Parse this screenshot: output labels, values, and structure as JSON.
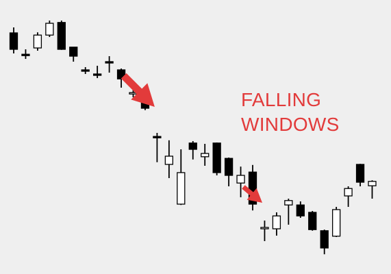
{
  "chart_data": {
    "type": "candlestick",
    "title": "",
    "xlabel": "",
    "ylabel": "",
    "grid": false,
    "legend": "none",
    "ylim": [
      0,
      100
    ],
    "candles": [
      {
        "open": 88.0,
        "high": 90.0,
        "low": 80.5,
        "close": 82.0
      },
      {
        "open": 80.2,
        "high": 82.0,
        "low": 78.5,
        "close": 79.8
      },
      {
        "open": 82.5,
        "high": 88.2,
        "low": 81.5,
        "close": 87.2
      },
      {
        "open": 87.2,
        "high": 92.5,
        "low": 86.5,
        "close": 91.5
      },
      {
        "open": 91.8,
        "high": 92.5,
        "low": 81.8,
        "close": 82.0
      },
      {
        "open": 82.8,
        "high": 82.8,
        "low": 77.5,
        "close": 79.5
      },
      {
        "open": 74.5,
        "high": 75.5,
        "low": 73.0,
        "close": 74.2
      },
      {
        "open": 73.0,
        "high": 76.0,
        "low": 71.5,
        "close": 72.8
      },
      {
        "open": 77.5,
        "high": 79.5,
        "low": 73.5,
        "close": 77.2
      },
      {
        "open": 74.5,
        "high": 75.0,
        "low": 68.0,
        "close": 71.2
      },
      {
        "open": 66.0,
        "high": 67.5,
        "low": 64.5,
        "close": 66.2
      },
      {
        "open": 67.0,
        "high": 68.5,
        "low": 59.8,
        "close": 60.5
      },
      {
        "open": 50.2,
        "high": 51.5,
        "low": 40.8,
        "close": 50.0
      },
      {
        "open": 40.0,
        "high": 48.8,
        "low": 35.0,
        "close": 43.0
      },
      {
        "open": 25.5,
        "high": 45.5,
        "low": 25.2,
        "close": 37.0
      },
      {
        "open": 47.8,
        "high": 48.5,
        "low": 41.8,
        "close": 45.5
      },
      {
        "open": 42.8,
        "high": 47.5,
        "low": 39.5,
        "close": 44.0
      },
      {
        "open": 47.8,
        "high": 48.0,
        "low": 36.0,
        "close": 37.0
      },
      {
        "open": 42.2,
        "high": 42.5,
        "low": 32.0,
        "close": 36.0
      },
      {
        "open": 33.2,
        "high": 39.2,
        "low": 28.0,
        "close": 36.0
      },
      {
        "open": 37.2,
        "high": 39.8,
        "low": 23.2,
        "close": 25.5
      },
      {
        "open": 16.8,
        "high": 19.5,
        "low": 12.0,
        "close": 17.0
      },
      {
        "open": 16.5,
        "high": 22.5,
        "low": 14.0,
        "close": 21.2
      },
      {
        "open": 25.2,
        "high": 27.5,
        "low": 18.0,
        "close": 26.8
      },
      {
        "open": 25.2,
        "high": 26.5,
        "low": 20.5,
        "close": 21.2
      },
      {
        "open": 22.5,
        "high": 23.0,
        "low": 15.8,
        "close": 16.2
      },
      {
        "open": 15.8,
        "high": 16.2,
        "low": 7.2,
        "close": 9.5
      },
      {
        "open": 13.8,
        "high": 24.5,
        "low": 13.5,
        "close": 23.5
      },
      {
        "open": 28.5,
        "high": 32.0,
        "low": 24.5,
        "close": 31.2
      },
      {
        "open": 40.0,
        "high": 40.2,
        "low": 32.0,
        "close": 33.5
      },
      {
        "open": 32.2,
        "high": 34.2,
        "low": 27.5,
        "close": 33.8
      }
    ],
    "annotation": {
      "lines": [
        "FALLING",
        "WINDOWS"
      ],
      "color": "#e23b3b"
    },
    "arrows": [
      {
        "name": "large-arrow",
        "tip": {
          "candle": 11,
          "value": 61
        },
        "angle_deg": 135
      },
      {
        "name": "small-arrow",
        "tip": {
          "candle": 20,
          "value": 26
        },
        "angle_deg": 140
      }
    ],
    "colors": {
      "background": "#efefef",
      "bear_fill": "#000000",
      "bull_fill": "#ffffff",
      "outline": "#000000",
      "arrow": "#e23b3b"
    }
  }
}
